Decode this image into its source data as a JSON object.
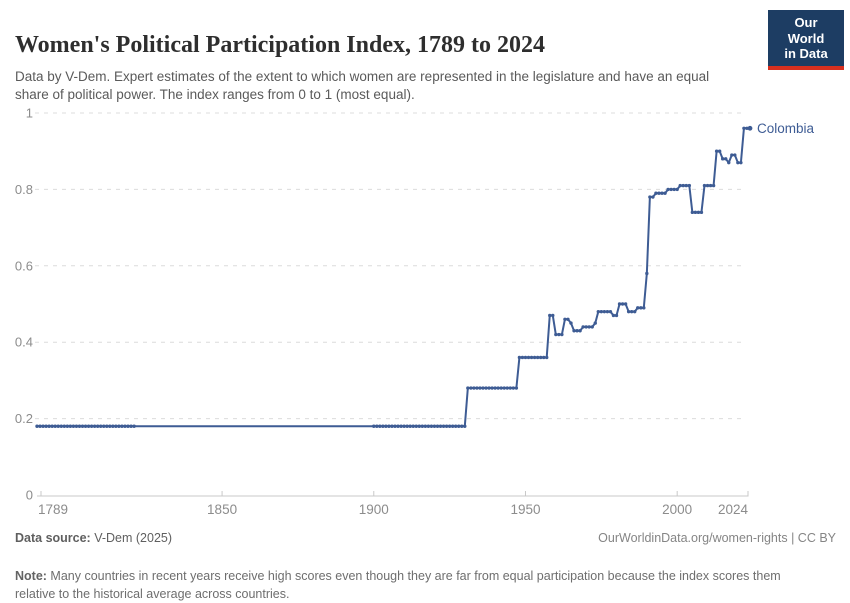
{
  "header": {
    "title": "Women's Political Participation Index, 1789 to 2024",
    "subtitle": "Data by V-Dem. Expert estimates of the extent to which women are represented in the legislature and have an equal share of political power. The index ranges from 0 to 1 (most equal).",
    "logo": {
      "line1": "Our World",
      "line2": "in Data",
      "bg_color": "#1d3d63",
      "accent_color": "#d7301f"
    }
  },
  "chart_data": {
    "type": "line",
    "title": "Women's Political Participation Index, 1789 to 2024",
    "series": [
      {
        "name": "Colombia",
        "segments_year_start_end_value": [
          [
            1789,
            1930,
            0.18
          ],
          [
            1931,
            1947,
            0.28
          ],
          [
            1948,
            1957,
            0.36
          ],
          [
            1958,
            1959,
            0.47
          ],
          [
            1960,
            1962,
            0.42
          ],
          [
            1963,
            1964,
            0.46
          ],
          [
            1965,
            1965,
            0.45
          ],
          [
            1966,
            1968,
            0.43
          ],
          [
            1969,
            1972,
            0.44
          ],
          [
            1973,
            1973,
            0.45
          ],
          [
            1974,
            1978,
            0.48
          ],
          [
            1979,
            1980,
            0.47
          ],
          [
            1981,
            1983,
            0.5
          ],
          [
            1984,
            1986,
            0.48
          ],
          [
            1987,
            1989,
            0.49
          ],
          [
            1990,
            1990,
            0.58
          ],
          [
            1991,
            1992,
            0.78
          ],
          [
            1993,
            1996,
            0.79
          ],
          [
            1997,
            2000,
            0.8
          ],
          [
            2001,
            2004,
            0.81
          ],
          [
            2005,
            2008,
            0.74
          ],
          [
            2009,
            2012,
            0.81
          ],
          [
            2013,
            2014,
            0.9
          ],
          [
            2015,
            2016,
            0.88
          ],
          [
            2017,
            2017,
            0.87
          ],
          [
            2018,
            2019,
            0.89
          ],
          [
            2020,
            2021,
            0.87
          ],
          [
            2022,
            2024,
            0.96
          ]
        ]
      }
    ],
    "series_end_label": "Colombia",
    "marker_year_ranges": [
      [
        1789,
        1821
      ],
      [
        1900,
        2024
      ]
    ],
    "x_ticks": [
      1789,
      1850,
      1900,
      1950,
      2000,
      2024
    ],
    "y_ticks": [
      0,
      0.2,
      0.4,
      0.6,
      0.8,
      1
    ],
    "x_range": [
      1789,
      2024
    ],
    "ylim": [
      0,
      1
    ],
    "grid": "horizontal-dashed",
    "legend_position": "end-of-line-label",
    "colors": {
      "line": "#3e5c94",
      "grid": "#dcdcdc",
      "axis": "#c8c8c8",
      "tick_label": "#8c8c8c"
    }
  },
  "footer": {
    "source_label": "Data source:",
    "source_value": " V-Dem (2025)",
    "rights": "OurWorldinData.org/women-rights | CC BY",
    "note_label": "Note:",
    "note_value": " Many countries in recent years receive high scores even though they are far from equal participation because the index scores them relative to the historical average across countries."
  }
}
